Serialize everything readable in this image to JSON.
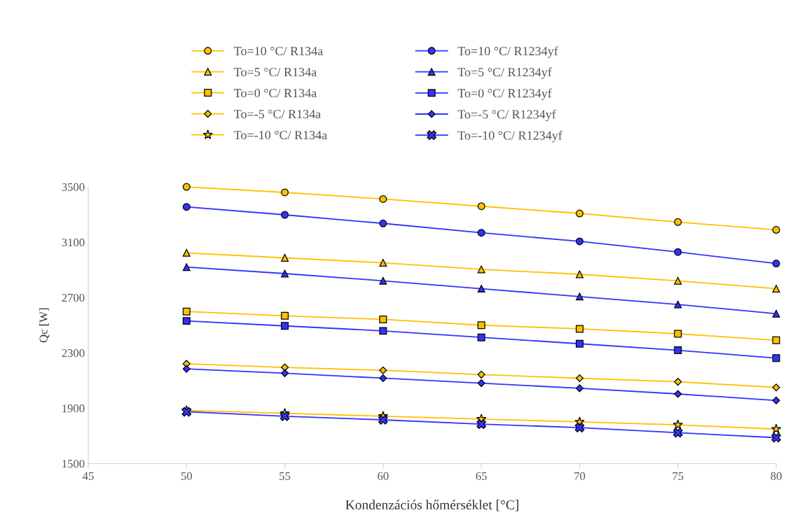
{
  "chart_data": {
    "type": "line",
    "xlabel": "Kondenzációs hőmérséklet [°C]",
    "ylabel": "Qc [W]",
    "x": [
      50,
      55,
      60,
      65,
      70,
      75,
      80
    ],
    "xlim": [
      45,
      80
    ],
    "xticks": [
      45,
      50,
      55,
      60,
      65,
      70,
      75,
      80
    ],
    "ylim": [
      1500,
      3500
    ],
    "yticks": [
      1500,
      1900,
      2300,
      2700,
      3100,
      3500
    ],
    "grid": false,
    "legend": "top",
    "series": [
      {
        "name": "To=10 °C/ R134a",
        "color": "#ffc000",
        "marker": "circle",
        "values": [
          3500,
          3460,
          3412,
          3360,
          3308,
          3246,
          3189
        ]
      },
      {
        "name": "To=10 °C/ R1234yf",
        "color": "#3333ff",
        "marker": "circle",
        "values": [
          3355,
          3298,
          3236,
          3168,
          3106,
          3029,
          2946
        ]
      },
      {
        "name": "To=5 °C/ R134a",
        "color": "#ffc000",
        "marker": "triangle",
        "values": [
          3023,
          2987,
          2951,
          2904,
          2868,
          2821,
          2764
        ]
      },
      {
        "name": "To=5 °C/ R1234yf",
        "color": "#3333ff",
        "marker": "triangle",
        "values": [
          2920,
          2873,
          2821,
          2764,
          2707,
          2650,
          2583
        ]
      },
      {
        "name": "To=0 °C/ R134a",
        "color": "#ffc000",
        "marker": "square",
        "values": [
          2599,
          2568,
          2542,
          2500,
          2474,
          2438,
          2391
        ]
      },
      {
        "name": "To=0 °C/ R1234yf",
        "color": "#3333ff",
        "marker": "square",
        "values": [
          2531,
          2495,
          2459,
          2412,
          2366,
          2319,
          2262
        ]
      },
      {
        "name": "To=-5 °C/ R134a",
        "color": "#ffc000",
        "marker": "diamond",
        "values": [
          2221,
          2195,
          2174,
          2143,
          2117,
          2091,
          2050
        ]
      },
      {
        "name": "To=-5 °C/ R1234yf",
        "color": "#3333ff",
        "marker": "diamond",
        "values": [
          2184,
          2153,
          2117,
          2081,
          2044,
          2003,
          1956
        ]
      },
      {
        "name": "To=-10 °C/ R134a",
        "color": "#ffc000",
        "marker": "star",
        "values": [
          1884,
          1863,
          1842,
          1822,
          1801,
          1780,
          1749
        ]
      },
      {
        "name": "To=-10 °C/ R1234yf",
        "color": "#3333ff",
        "marker": "cross",
        "values": [
          1874,
          1842,
          1816,
          1785,
          1760,
          1723,
          1687
        ]
      }
    ]
  }
}
